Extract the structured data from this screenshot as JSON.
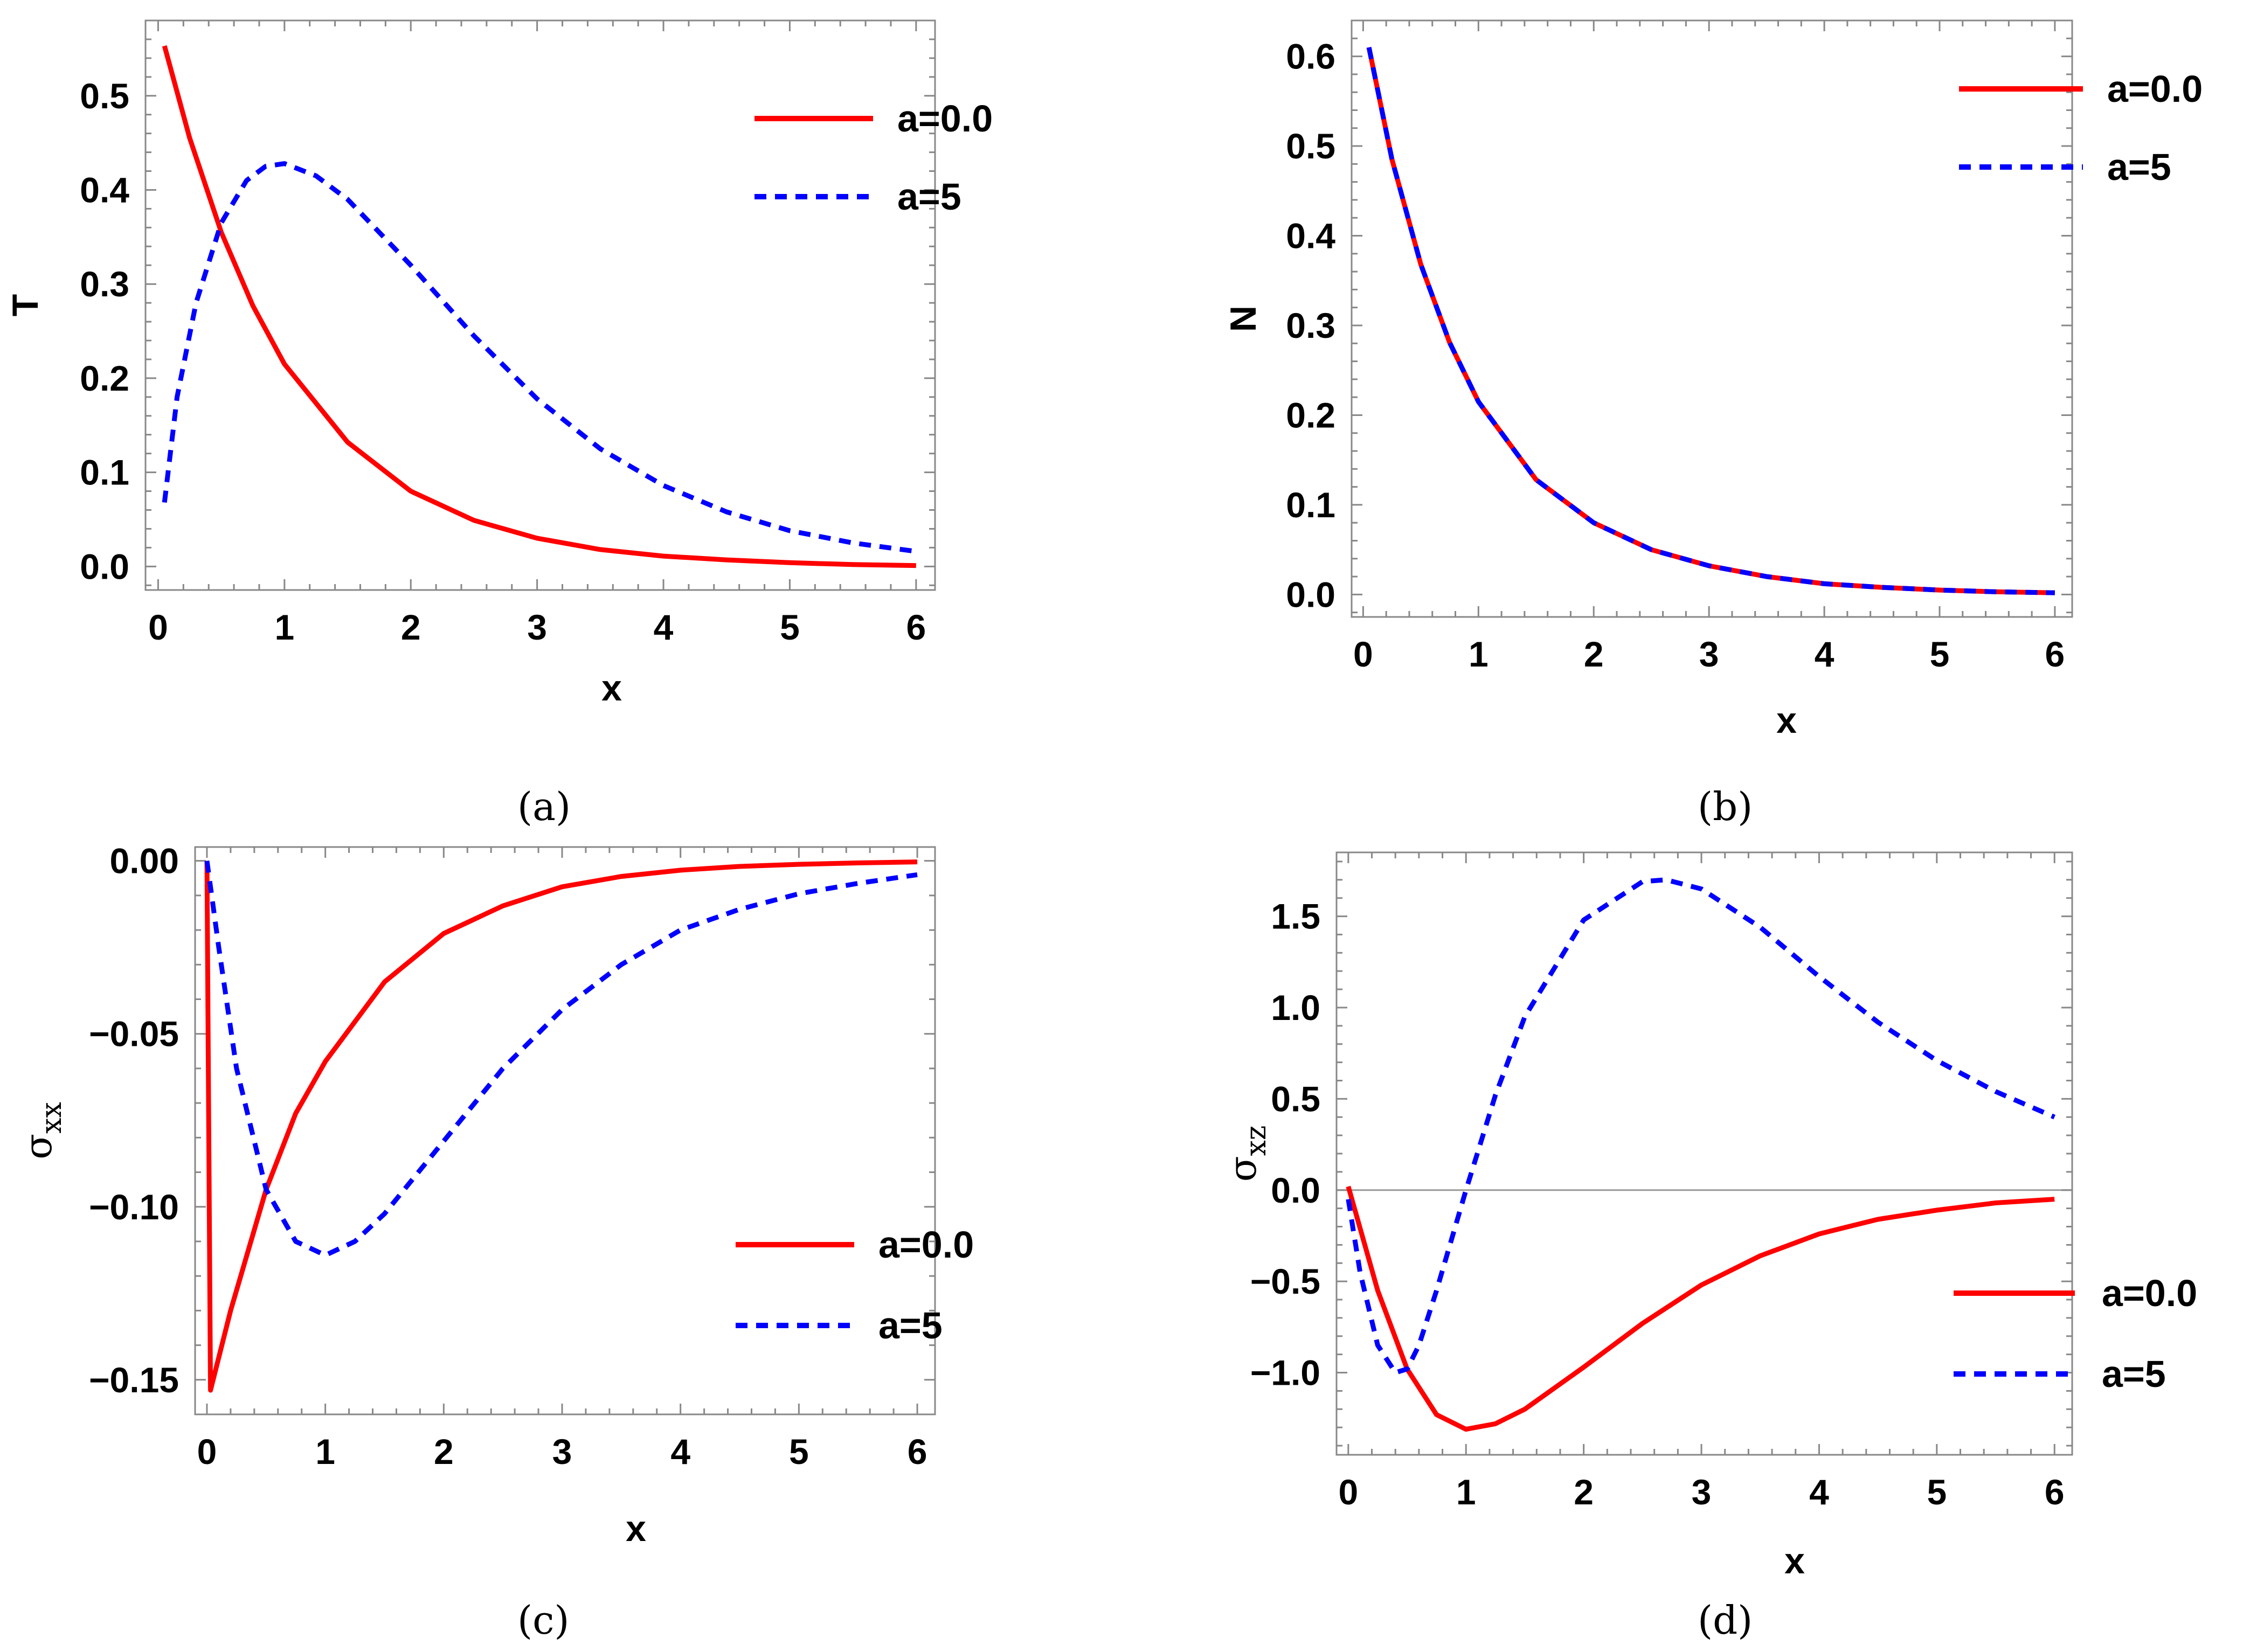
{
  "colors": {
    "series_a0": "#ff0000",
    "series_a5": "#0000ff",
    "frame": "#888888",
    "zero_line": "#999999"
  },
  "charts": [
    {
      "id": "a",
      "caption": "(a)",
      "ylabel": "T",
      "xlabel": "x",
      "xlim": [
        -0.1,
        6.15
      ],
      "ylim": [
        -0.025,
        0.58
      ],
      "xticks": [
        0,
        1,
        2,
        3,
        4,
        5,
        6
      ],
      "xtick_labels": [
        "0",
        "1",
        "2",
        "3",
        "4",
        "5",
        "6"
      ],
      "yticks": [
        0.0,
        0.1,
        0.2,
        0.3,
        0.4,
        0.5
      ],
      "ytick_labels": [
        "0.0",
        "0.1",
        "0.2",
        "0.3",
        "0.4",
        "0.5"
      ],
      "zero_line": false,
      "legend": {
        "entries": [
          "a=0.0",
          "a=5"
        ],
        "position": "top-right"
      },
      "series": [
        {
          "name": "a=0.0",
          "style": "solid",
          "x": [
            0.05,
            0.25,
            0.5,
            0.75,
            1.0,
            1.5,
            2.0,
            2.5,
            3.0,
            3.5,
            4.0,
            4.5,
            5.0,
            5.5,
            6.0
          ],
          "y": [
            0.553,
            0.455,
            0.355,
            0.277,
            0.215,
            0.132,
            0.08,
            0.049,
            0.03,
            0.018,
            0.011,
            0.007,
            0.004,
            0.002,
            0.001
          ]
        },
        {
          "name": "a=5",
          "style": "dashed",
          "x": [
            0.05,
            0.15,
            0.3,
            0.5,
            0.7,
            0.85,
            1.0,
            1.25,
            1.5,
            2.0,
            2.5,
            3.0,
            3.5,
            4.0,
            4.5,
            5.0,
            5.5,
            6.0
          ],
          "y": [
            0.068,
            0.18,
            0.28,
            0.365,
            0.41,
            0.425,
            0.428,
            0.415,
            0.39,
            0.32,
            0.245,
            0.178,
            0.125,
            0.086,
            0.058,
            0.038,
            0.025,
            0.016
          ]
        }
      ]
    },
    {
      "id": "b",
      "caption": "(b)",
      "ylabel": "N",
      "xlabel": "x",
      "xlim": [
        -0.1,
        6.15
      ],
      "ylim": [
        -0.025,
        0.64
      ],
      "xticks": [
        0,
        1,
        2,
        3,
        4,
        5,
        6
      ],
      "xtick_labels": [
        "0",
        "1",
        "2",
        "3",
        "4",
        "5",
        "6"
      ],
      "yticks": [
        0.0,
        0.1,
        0.2,
        0.3,
        0.4,
        0.5,
        0.6
      ],
      "ytick_labels": [
        "0.0",
        "0.1",
        "0.2",
        "0.3",
        "0.4",
        "0.5",
        "0.6"
      ],
      "zero_line": false,
      "legend": {
        "entries": [
          "a=0.0",
          "a=5"
        ],
        "position": "top-right"
      },
      "series": [
        {
          "name": "a=0.0",
          "style": "solid",
          "x": [
            0.05,
            0.25,
            0.5,
            0.75,
            1.0,
            1.5,
            2.0,
            2.5,
            3.0,
            3.5,
            4.0,
            4.5,
            5.0,
            5.5,
            6.0
          ],
          "y": [
            0.61,
            0.485,
            0.368,
            0.281,
            0.215,
            0.128,
            0.08,
            0.05,
            0.032,
            0.02,
            0.012,
            0.008,
            0.005,
            0.003,
            0.002
          ]
        },
        {
          "name": "a=5",
          "style": "dashed",
          "x": [
            0.05,
            0.25,
            0.5,
            0.75,
            1.0,
            1.5,
            2.0,
            2.5,
            3.0,
            3.5,
            4.0,
            4.5,
            5.0,
            5.5,
            6.0
          ],
          "y": [
            0.61,
            0.485,
            0.368,
            0.281,
            0.215,
            0.128,
            0.08,
            0.05,
            0.032,
            0.02,
            0.012,
            0.008,
            0.005,
            0.003,
            0.002
          ]
        }
      ]
    },
    {
      "id": "c",
      "caption": "(c)",
      "ylabel": "σ",
      "ylabel_sub": "xx",
      "xlabel": "x",
      "xlim": [
        -0.1,
        6.15
      ],
      "ylim": [
        -0.16,
        0.004
      ],
      "xticks": [
        0,
        1,
        2,
        3,
        4,
        5,
        6
      ],
      "xtick_labels": [
        "0",
        "1",
        "2",
        "3",
        "4",
        "5",
        "6"
      ],
      "yticks": [
        0.0,
        -0.05,
        -0.1,
        -0.15
      ],
      "ytick_labels": [
        "0.00",
        "−0.05",
        "−0.10",
        "−0.15"
      ],
      "zero_line": false,
      "legend": {
        "entries": [
          "a=0.0",
          "a=5"
        ],
        "position": "bottom-right"
      },
      "series": [
        {
          "name": "a=0.0",
          "style": "solid",
          "x": [
            0.0,
            0.03,
            0.2,
            0.5,
            0.75,
            1.0,
            1.5,
            2.0,
            2.5,
            3.0,
            3.5,
            4.0,
            4.5,
            5.0,
            5.5,
            6.0
          ],
          "y": [
            0.0,
            -0.153,
            -0.13,
            -0.095,
            -0.073,
            -0.058,
            -0.035,
            -0.021,
            -0.013,
            -0.0075,
            -0.0045,
            -0.0027,
            -0.0016,
            -0.001,
            -0.0006,
            -0.0003
          ]
        },
        {
          "name": "a=5",
          "style": "dashed",
          "x": [
            0.0,
            0.1,
            0.25,
            0.5,
            0.75,
            1.0,
            1.25,
            1.5,
            2.0,
            2.5,
            3.0,
            3.5,
            4.0,
            4.5,
            5.0,
            5.5,
            6.0
          ],
          "y": [
            0.0,
            -0.025,
            -0.06,
            -0.095,
            -0.11,
            -0.114,
            -0.11,
            -0.102,
            -0.081,
            -0.06,
            -0.043,
            -0.03,
            -0.02,
            -0.014,
            -0.0095,
            -0.0065,
            -0.004
          ]
        }
      ]
    },
    {
      "id": "d",
      "caption": "(d)",
      "ylabel": "σ",
      "ylabel_sub": "xz",
      "xlabel": "x",
      "xlim": [
        -0.1,
        6.15
      ],
      "ylim": [
        -1.45,
        1.85
      ],
      "xticks": [
        0,
        1,
        2,
        3,
        4,
        5,
        6
      ],
      "xtick_labels": [
        "0",
        "1",
        "2",
        "3",
        "4",
        "5",
        "6"
      ],
      "yticks": [
        1.5,
        1.0,
        0.5,
        0.0,
        -0.5,
        -1.0
      ],
      "ytick_labels": [
        "1.5",
        "1.0",
        "0.5",
        "0.0",
        "−0.5",
        "−1.0"
      ],
      "zero_line": true,
      "legend": {
        "entries": [
          "a=0.0",
          "a=5"
        ],
        "position": "bottom-right"
      },
      "series": [
        {
          "name": "a=0.0",
          "style": "solid",
          "x": [
            0.0,
            0.25,
            0.5,
            0.75,
            1.0,
            1.25,
            1.5,
            2.0,
            2.5,
            3.0,
            3.5,
            4.0,
            4.5,
            5.0,
            5.5,
            6.0
          ],
          "y": [
            0.02,
            -0.55,
            -0.98,
            -1.23,
            -1.31,
            -1.28,
            -1.2,
            -0.97,
            -0.73,
            -0.52,
            -0.36,
            -0.24,
            -0.16,
            -0.11,
            -0.07,
            -0.05
          ]
        },
        {
          "name": "a=5",
          "style": "dashed",
          "x": [
            0.0,
            0.1,
            0.25,
            0.4,
            0.5,
            0.6,
            0.75,
            1.0,
            1.25,
            1.5,
            2.0,
            2.5,
            2.7,
            3.0,
            3.5,
            4.0,
            4.5,
            5.0,
            5.5,
            6.0
          ],
          "y": [
            -0.05,
            -0.45,
            -0.85,
            -1.0,
            -0.98,
            -0.85,
            -0.55,
            0.0,
            0.52,
            0.95,
            1.48,
            1.69,
            1.7,
            1.65,
            1.44,
            1.17,
            0.92,
            0.71,
            0.54,
            0.4
          ]
        }
      ]
    }
  ]
}
